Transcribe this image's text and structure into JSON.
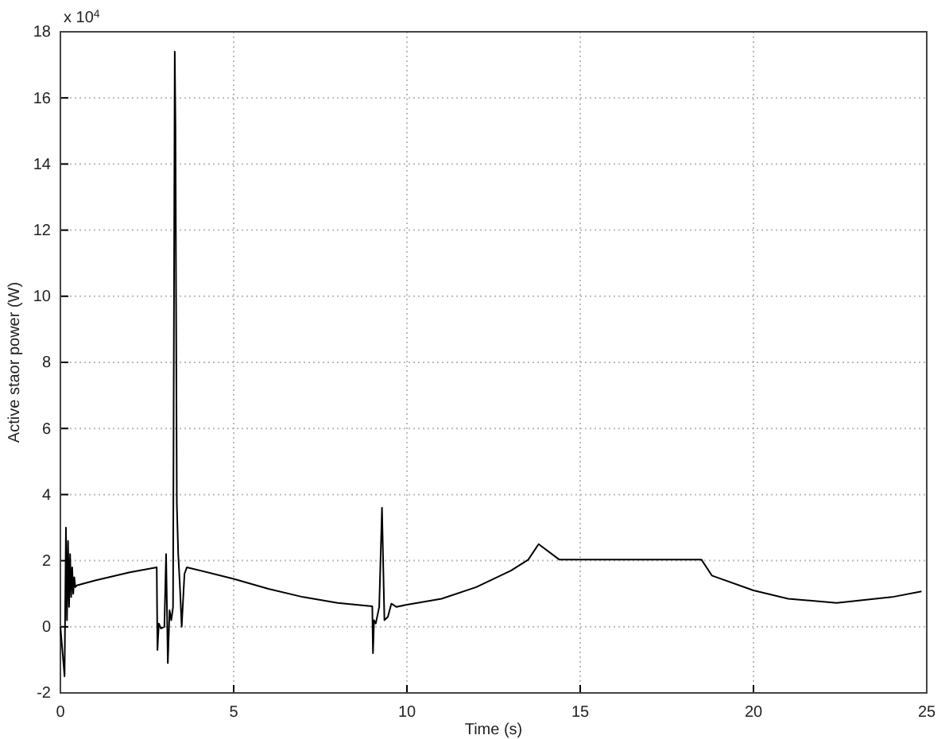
{
  "chart_data": {
    "type": "line",
    "xlabel": "Time (s)",
    "ylabel": "Active staor power (W)",
    "annotations": [
      "x 10$^{4}$"
    ],
    "x": [
      0,
      0.12,
      0.16,
      0.19,
      0.22,
      0.25,
      0.28,
      0.31,
      0.34,
      0.37,
      0.4,
      0.43,
      0.47,
      1,
      2,
      2.78,
      2.8,
      2.84,
      2.9,
      3.0,
      3.05,
      3.1,
      3.15,
      3.2,
      3.25,
      3.3,
      3.32,
      3.36,
      3.4,
      3.45,
      3.5,
      3.58,
      3.65,
      5,
      6,
      7,
      8,
      9,
      9.02,
      9.05,
      9.1,
      9.2,
      9.28,
      9.35,
      9.45,
      9.55,
      9.7,
      10,
      11,
      12,
      13,
      13.5,
      13.8,
      14.4,
      18.5,
      18.8,
      20,
      21,
      22.4,
      24,
      24.85
    ],
    "series": [
      {
        "color": "#000000",
        "values": [
          0,
          -1.5,
          3.0,
          0.2,
          2.6,
          0.6,
          2.2,
          0.9,
          1.8,
          1.0,
          1.5,
          1.2,
          1.25,
          1.4,
          1.65,
          1.8,
          -0.7,
          0.1,
          -0.05,
          0,
          2.2,
          -1.1,
          0.5,
          0.2,
          0.6,
          17.4,
          15.2,
          3.7,
          2.2,
          1.2,
          0,
          1.6,
          1.8,
          1.45,
          1.15,
          0.9,
          0.72,
          0.62,
          -0.8,
          0.2,
          0.1,
          0.6,
          3.6,
          0.2,
          0.3,
          0.7,
          0.6,
          0.67,
          0.85,
          1.2,
          1.7,
          2.03,
          2.5,
          2.03,
          2.03,
          1.55,
          1.1,
          0.85,
          0.72,
          0.9,
          1.07
        ]
      }
    ],
    "xlim": [
      0,
      25
    ],
    "ylim": [
      -2,
      18
    ],
    "xticks": [
      0,
      5,
      10,
      15,
      20,
      25
    ],
    "yticks": [
      -2,
      0,
      2,
      4,
      6,
      8,
      10,
      12,
      14,
      16,
      18
    ],
    "grid": true,
    "line_style": "solid",
    "marker": "none"
  }
}
